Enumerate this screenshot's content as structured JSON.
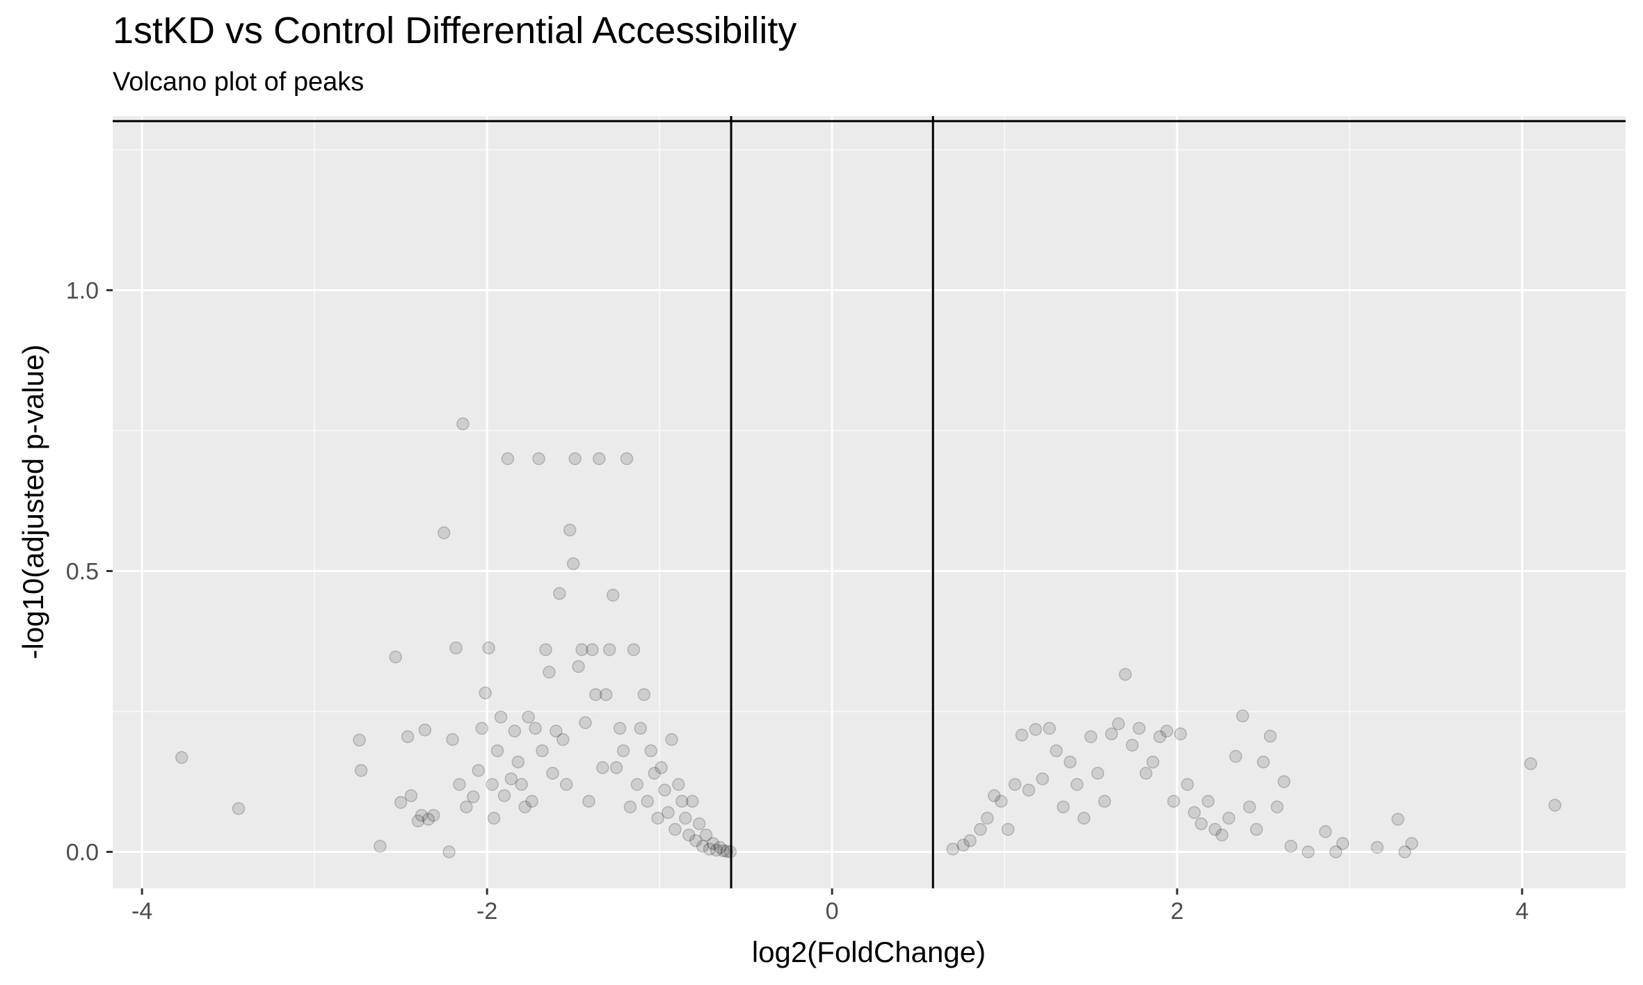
{
  "chart_data": {
    "type": "scatter",
    "title": "1stKD vs Control Differential Accessibility",
    "subtitle": "Volcano plot of peaks",
    "xlabel": "log2(FoldChange)",
    "ylabel": "-log10(adjusted p-value)",
    "xlim": [
      -4.17,
      4.6
    ],
    "ylim": [
      -0.065,
      1.31
    ],
    "grid": true,
    "x_ticks": [
      -4,
      -2,
      0,
      2,
      4
    ],
    "x_tick_labels": [
      "-4",
      "-2",
      "0",
      "2",
      "4"
    ],
    "y_ticks": [
      0.0,
      0.5,
      1.0
    ],
    "y_tick_labels": [
      "0.0",
      "0.5",
      "1.0"
    ],
    "reference_lines": {
      "vertical": [
        -0.585,
        0.585
      ],
      "horizontal": [
        1.301
      ]
    },
    "point_color": "#000000",
    "point_alpha": 0.12,
    "series": [
      {
        "x": [
          -3.77,
          -3.44,
          -2.74,
          -2.73,
          -2.62,
          -2.53,
          -2.5,
          -2.46,
          -2.44,
          -2.4,
          -2.38,
          -2.36,
          -2.34,
          -2.31,
          -2.25,
          -2.22,
          -2.2,
          -2.18,
          -2.16,
          -2.14,
          -2.12,
          -2.08,
          -2.05,
          -2.03,
          -2.01,
          -1.99,
          -1.97,
          -1.96,
          -1.94,
          -1.92,
          -1.9,
          -1.88,
          -1.86,
          -1.84,
          -1.82,
          -1.8,
          -1.78,
          -1.76,
          -1.74,
          -1.72,
          -1.7,
          -1.68,
          -1.66,
          -1.64,
          -1.62,
          -1.6,
          -1.58,
          -1.56,
          -1.54,
          -1.52,
          -1.5,
          -1.49,
          -1.47,
          -1.45,
          -1.43,
          -1.41,
          -1.39,
          -1.37,
          -1.35,
          -1.33,
          -1.31,
          -1.29,
          -1.27,
          -1.25,
          -1.23,
          -1.21,
          -1.19,
          -1.17,
          -1.15,
          -1.13,
          -1.11,
          -1.09,
          -1.07,
          -1.05,
          -1.03,
          -1.01,
          -0.99,
          -0.97,
          -0.95,
          -0.93,
          -0.91,
          -0.89,
          -0.87,
          -0.85,
          -0.83,
          -0.81,
          -0.79,
          -0.77,
          -0.75,
          -0.73,
          -0.71,
          -0.69,
          -0.67,
          -0.65,
          -0.63,
          -0.61,
          -0.59
        ],
        "y": [
          0.168,
          0.077,
          0.199,
          0.145,
          0.01,
          0.347,
          0.088,
          0.205,
          0.1,
          0.055,
          0.065,
          0.217,
          0.058,
          0.065,
          0.568,
          0.0,
          0.2,
          0.363,
          0.12,
          0.762,
          0.08,
          0.098,
          0.145,
          0.22,
          0.283,
          0.363,
          0.12,
          0.06,
          0.18,
          0.24,
          0.1,
          0.7,
          0.13,
          0.215,
          0.16,
          0.12,
          0.08,
          0.24,
          0.09,
          0.22,
          0.7,
          0.18,
          0.36,
          0.32,
          0.14,
          0.215,
          0.46,
          0.2,
          0.12,
          0.573,
          0.513,
          0.7,
          0.33,
          0.36,
          0.23,
          0.09,
          0.36,
          0.28,
          0.7,
          0.15,
          0.28,
          0.36,
          0.457,
          0.15,
          0.22,
          0.18,
          0.7,
          0.08,
          0.36,
          0.12,
          0.22,
          0.28,
          0.09,
          0.18,
          0.14,
          0.06,
          0.15,
          0.11,
          0.07,
          0.2,
          0.04,
          0.12,
          0.09,
          0.06,
          0.03,
          0.09,
          0.02,
          0.05,
          0.01,
          0.03,
          0.005,
          0.015,
          0.003,
          0.008,
          0.002,
          0.001,
          0.0
        ]
      },
      {
        "x": [
          0.7,
          0.76,
          0.8,
          0.86,
          0.9,
          0.94,
          0.98,
          1.02,
          1.06,
          1.1,
          1.14,
          1.18,
          1.22,
          1.26,
          1.3,
          1.34,
          1.38,
          1.42,
          1.46,
          1.5,
          1.54,
          1.58,
          1.62,
          1.66,
          1.7,
          1.74,
          1.78,
          1.82,
          1.86,
          1.9,
          1.94,
          1.98,
          2.02,
          2.06,
          2.1,
          2.14,
          2.18,
          2.22,
          2.26,
          2.3,
          2.34,
          2.38,
          2.42,
          2.46,
          2.5,
          2.54,
          2.58,
          2.62,
          2.66,
          2.76,
          2.86,
          2.92,
          2.96,
          3.16,
          3.28,
          3.32,
          3.36,
          4.05,
          4.19
        ],
        "y": [
          0.005,
          0.012,
          0.02,
          0.04,
          0.06,
          0.1,
          0.09,
          0.04,
          0.12,
          0.208,
          0.11,
          0.218,
          0.13,
          0.22,
          0.18,
          0.08,
          0.16,
          0.12,
          0.06,
          0.205,
          0.14,
          0.09,
          0.21,
          0.228,
          0.316,
          0.19,
          0.22,
          0.14,
          0.16,
          0.205,
          0.215,
          0.09,
          0.21,
          0.12,
          0.07,
          0.05,
          0.09,
          0.04,
          0.03,
          0.06,
          0.17,
          0.242,
          0.08,
          0.04,
          0.16,
          0.206,
          0.08,
          0.125,
          0.01,
          0.0,
          0.036,
          0.0,
          0.015,
          0.008,
          0.058,
          0.0,
          0.015,
          0.157,
          0.083
        ]
      }
    ]
  }
}
